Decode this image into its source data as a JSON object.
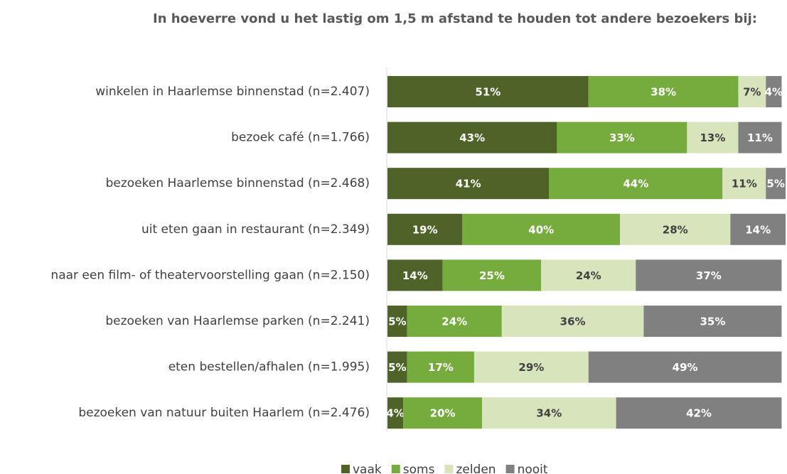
{
  "chart_data": {
    "type": "stacked-bar-horizontal",
    "title": "In hoeverre vond u het lastig om 1,5 m afstand te houden tot andere bezoekers bij:",
    "categories": [
      "winkelen in Haarlemse binnenstad (n=2.407)",
      "bezoek café (n=1.766)",
      "bezoeken Haarlemse binnenstad (n=2.468)",
      "uit eten gaan in restaurant (n=2.349)",
      "naar een film- of theatervoorstelling gaan (n=2.150)",
      "bezoeken van Haarlemse parken (n=2.241)",
      "eten bestellen/afhalen (n=1.995)",
      "bezoeken van natuur buiten Haarlem (n=2.476)"
    ],
    "series": [
      {
        "name": "vaak",
        "color": "#4f6228",
        "values": [
          51,
          43,
          41,
          19,
          14,
          5,
          5,
          4
        ],
        "value_labels": [
          "51%",
          "43%",
          "41%",
          "19%",
          "14%",
          "5%",
          "5%",
          "4%"
        ]
      },
      {
        "name": "soms",
        "color": "#76ac3d",
        "values": [
          38,
          33,
          44,
          40,
          25,
          24,
          17,
          20
        ],
        "value_labels": [
          "38%",
          "33%",
          "44%",
          "40%",
          "25%",
          "24%",
          "17%",
          "20%"
        ]
      },
      {
        "name": "zelden",
        "color": "#d8e4bc",
        "values": [
          7,
          13,
          11,
          28,
          24,
          36,
          29,
          34
        ],
        "value_labels": [
          "7%",
          "13%",
          "11%",
          "28%",
          "24%",
          "36%",
          "29%",
          "34%"
        ]
      },
      {
        "name": "nooit",
        "color": "#808080",
        "values": [
          4,
          11,
          5,
          14,
          37,
          35,
          49,
          42
        ],
        "value_labels": [
          "4%",
          "11%",
          "5%",
          "14%",
          "37%",
          "35%",
          "49%",
          "42%"
        ]
      }
    ],
    "legend": "bottom"
  }
}
